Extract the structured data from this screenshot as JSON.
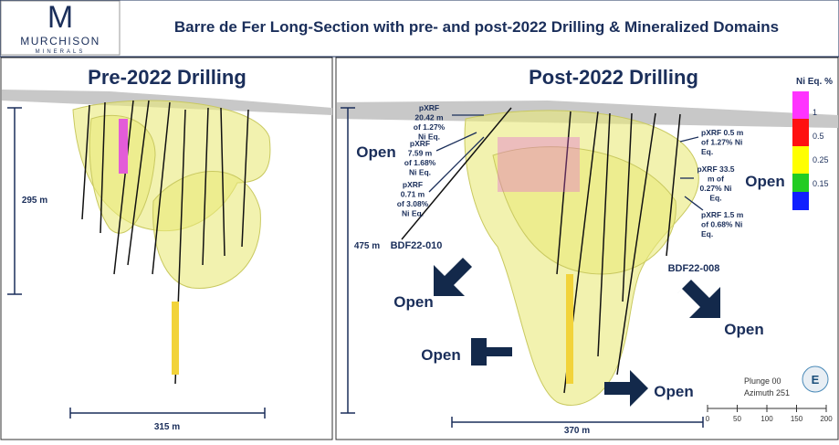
{
  "logo": {
    "letter": "M",
    "name": "MURCHISON",
    "sub": "MINERALS"
  },
  "title": "Barre de Fer Long-Section with pre- and post-2022 Drilling & Mineralized Domains",
  "left_panel": {
    "title": "Pre-2022 Drilling",
    "depth": "295 m",
    "width": "315 m"
  },
  "right_panel": {
    "title": "Post-2022 Drilling",
    "depth": "475 m",
    "width": "370 m",
    "annotations": [
      [
        "pXRF",
        "20.42 m",
        "of 1.27%",
        "Ni Eq."
      ],
      [
        "pXRF",
        "7.59 m",
        "of 1.68%",
        "Ni Eq."
      ],
      [
        "pXRF",
        "0.71 m",
        "of 3.08%",
        "Ni Eq."
      ],
      [
        "pXRF 0.5 m",
        "of 1.27% Ni",
        "Eq."
      ],
      [
        "pXRF 33.5",
        "m of",
        "0.27% Ni",
        "Eq."
      ],
      [
        "pXRF 1.5 m",
        "of 0.68% Ni",
        "Eq."
      ]
    ],
    "holes": [
      "BDF22-010",
      "BDF22-008"
    ],
    "open_labels": [
      "Open",
      "Open",
      "Open",
      "Open",
      "Open",
      "Open"
    ]
  },
  "legend": {
    "title": "Ni Eq. %",
    "labels": [
      "1",
      "0.5",
      "0.25",
      "0.15"
    ]
  },
  "orientation": {
    "plunge": "Plunge 00",
    "azimuth": "Azimuth 251",
    "compass": "E"
  },
  "scale_bar": [
    "0",
    "50",
    "100",
    "150",
    "200"
  ]
}
